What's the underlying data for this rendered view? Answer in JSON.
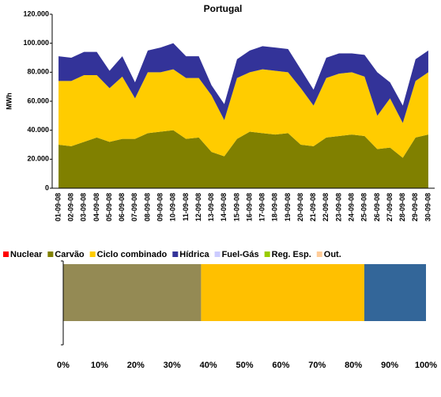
{
  "chart_data": [
    {
      "type": "stacked-area",
      "title": "Portugal",
      "y_label": "MWh",
      "categories": [
        "01-09-08",
        "02-09-08",
        "03-09-08",
        "04-09-08",
        "05-09-08",
        "06-09-08",
        "07-09-08",
        "08-09-08",
        "09-09-08",
        "10-09-08",
        "11-09-08",
        "12-09-08",
        "13-09-08",
        "14-09-08",
        "15-09-08",
        "16-09-08",
        "17-09-08",
        "18-09-08",
        "19-09-08",
        "20-09-08",
        "21-09-08",
        "22-09-08",
        "23-09-08",
        "24-09-08",
        "25-09-08",
        "26-09-08",
        "27-09-08",
        "28-09-08",
        "29-09-08",
        "30-09-08"
      ],
      "series": [
        {
          "name": "Nuclear",
          "color": "#ff0000",
          "values": [
            0,
            0,
            0,
            0,
            0,
            0,
            0,
            0,
            0,
            0,
            0,
            0,
            0,
            0,
            0,
            0,
            0,
            0,
            0,
            0,
            0,
            0,
            0,
            0,
            0,
            0,
            0,
            0,
            0,
            0
          ]
        },
        {
          "name": "Carvão",
          "color": "#808000",
          "values": [
            30000,
            29000,
            32000,
            35000,
            32000,
            34000,
            34000,
            38000,
            39000,
            40000,
            34000,
            35000,
            25000,
            22000,
            34000,
            39000,
            38000,
            37000,
            38000,
            30000,
            29000,
            35000,
            36000,
            37000,
            36000,
            27000,
            28000,
            21000,
            35000,
            37000
          ]
        },
        {
          "name": "Ciclo combinado",
          "color": "#ffcc00",
          "values": [
            44000,
            45000,
            46000,
            43000,
            37000,
            43000,
            28000,
            42000,
            41000,
            42000,
            42000,
            41000,
            39000,
            25000,
            42000,
            41000,
            44000,
            44000,
            42000,
            39000,
            28000,
            41000,
            43000,
            43000,
            41000,
            23000,
            34000,
            24000,
            39000,
            43000
          ]
        },
        {
          "name": "Hídrica",
          "color": "#333399",
          "values": [
            17000,
            16000,
            16000,
            16000,
            12000,
            14000,
            11000,
            15000,
            17000,
            18000,
            15000,
            15000,
            7000,
            11000,
            13000,
            15000,
            16000,
            16000,
            16000,
            13000,
            11000,
            14000,
            14000,
            13000,
            15000,
            30000,
            11000,
            12000,
            15000,
            15000
          ]
        },
        {
          "name": "Fuel-Gás",
          "color": "#ccccff",
          "values": [
            0,
            0,
            0,
            0,
            0,
            0,
            0,
            0,
            0,
            0,
            0,
            0,
            0,
            0,
            0,
            0,
            0,
            0,
            0,
            0,
            0,
            0,
            0,
            0,
            0,
            0,
            0,
            0,
            0,
            0
          ]
        },
        {
          "name": "Reg. Esp.",
          "color": "#99cc00",
          "values": [
            0,
            0,
            0,
            0,
            0,
            0,
            0,
            0,
            0,
            0,
            0,
            0,
            0,
            0,
            0,
            0,
            0,
            0,
            0,
            0,
            0,
            0,
            0,
            0,
            0,
            0,
            0,
            0,
            0,
            0
          ]
        },
        {
          "name": "Out.",
          "color": "#ffcc99",
          "values": [
            0,
            0,
            0,
            0,
            0,
            0,
            0,
            0,
            0,
            0,
            0,
            0,
            0,
            0,
            0,
            0,
            0,
            0,
            0,
            0,
            0,
            0,
            0,
            0,
            0,
            0,
            0,
            0,
            0,
            0
          ]
        }
      ],
      "ylim": [
        0,
        120000
      ],
      "yticks": [
        0,
        {
          "value": 20000,
          "label": "20.000"
        },
        {
          "value": 40000,
          "label": "40.000"
        },
        {
          "value": 60000,
          "label": "60.000"
        },
        {
          "value": 80000,
          "label": "80.000"
        },
        {
          "value": 100000,
          "label": "100.000"
        },
        {
          "value": 120000,
          "label": "120.000"
        }
      ]
    },
    {
      "type": "stacked-bar-horizontal",
      "values": [
        38,
        45,
        17
      ],
      "colors": [
        "#948a54",
        "#ffc000",
        "#336699"
      ],
      "xlim": [
        0,
        100
      ],
      "xticks": [
        {
          "value": 0,
          "label": "0%"
        },
        {
          "value": 10,
          "label": "10%"
        },
        {
          "value": 20,
          "label": "20%"
        },
        {
          "value": 30,
          "label": "30%"
        },
        {
          "value": 40,
          "label": "40%"
        },
        {
          "value": 50,
          "label": "50%"
        },
        {
          "value": 60,
          "label": "60%"
        },
        {
          "value": 70,
          "label": "70%"
        },
        {
          "value": 80,
          "label": "80%"
        },
        {
          "value": 90,
          "label": "90%"
        },
        {
          "value": 100,
          "label": "100%"
        }
      ]
    }
  ]
}
